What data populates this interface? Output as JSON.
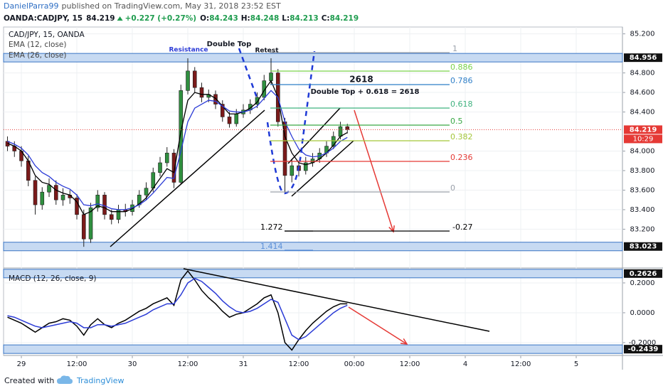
{
  "header": {
    "publisher": "DanielParra99",
    "published": "published on TradingView.com, May 31, 2018 23:52 EST",
    "symbol": "OANDA:CADJPY, 15",
    "last": "84.219",
    "change": "+0.227 (+0.27%)",
    "ohlc": [
      {
        "label": "O:",
        "value": "84.243"
      },
      {
        "label": "H:",
        "value": "84.248"
      },
      {
        "label": "L:",
        "value": "84.213"
      },
      {
        "label": "C:",
        "value": "84.219"
      }
    ]
  },
  "footer": {
    "created": "Created with",
    "brand": "TradingView"
  },
  "chart_data": [
    {
      "type": "candlestick",
      "title": "CAD/JPY, 15, OANDA",
      "x": [
        -3,
        -1.5,
        0,
        1.5,
        3,
        4.5,
        6,
        7.5,
        9,
        10.5,
        12,
        13.5,
        15,
        16.5,
        18,
        19.5,
        21,
        22.5,
        24,
        25.5,
        27,
        28.5,
        30,
        31.5,
        33,
        34.5,
        36,
        37.5,
        39,
        40.5,
        42,
        43.5,
        45,
        46.5,
        48,
        49.5,
        51,
        52.5,
        54,
        55.5,
        57,
        58.5,
        60,
        61.5,
        63,
        64.5,
        66,
        67.5,
        69,
        70.5
      ],
      "open": [
        84.1,
        84.05,
        84.0,
        83.9,
        83.7,
        83.45,
        83.58,
        83.65,
        83.5,
        83.55,
        83.52,
        83.35,
        83.1,
        83.42,
        83.55,
        83.35,
        83.3,
        83.4,
        83.38,
        83.45,
        83.55,
        83.62,
        83.78,
        83.88,
        83.98,
        83.68,
        84.62,
        84.82,
        84.65,
        84.55,
        84.58,
        84.48,
        84.35,
        84.28,
        84.38,
        84.42,
        84.48,
        84.55,
        84.72,
        84.8,
        84.3,
        83.75,
        83.85,
        83.8,
        83.88,
        83.92,
        83.98,
        84.05,
        84.15,
        84.25
      ],
      "high": [
        84.15,
        84.1,
        84.05,
        83.95,
        83.74,
        83.63,
        83.72,
        83.7,
        83.62,
        83.6,
        83.56,
        83.4,
        83.47,
        83.6,
        83.58,
        83.4,
        83.45,
        83.46,
        83.5,
        83.6,
        83.68,
        83.83,
        83.94,
        84.04,
        84.02,
        84.68,
        84.95,
        84.86,
        84.7,
        84.63,
        84.62,
        84.52,
        84.4,
        84.43,
        84.48,
        84.53,
        84.6,
        84.78,
        84.95,
        84.84,
        84.34,
        83.92,
        83.9,
        83.94,
        83.98,
        84.03,
        84.1,
        84.2,
        84.3,
        84.28
      ],
      "low": [
        84.0,
        83.94,
        83.84,
        83.64,
        83.35,
        83.4,
        83.53,
        83.45,
        83.44,
        83.46,
        83.3,
        83.02,
        83.06,
        83.38,
        83.3,
        83.25,
        83.26,
        83.33,
        83.34,
        83.42,
        83.5,
        83.58,
        83.74,
        83.84,
        83.62,
        83.66,
        84.58,
        84.6,
        84.5,
        84.5,
        84.43,
        84.3,
        84.24,
        84.25,
        84.34,
        84.38,
        84.44,
        84.52,
        84.68,
        84.25,
        83.57,
        83.68,
        83.74,
        83.76,
        83.84,
        83.88,
        83.94,
        84.02,
        84.12,
        84.18
      ],
      "close": [
        84.05,
        84.0,
        83.9,
        83.7,
        83.45,
        83.58,
        83.65,
        83.5,
        83.55,
        83.52,
        83.35,
        83.1,
        83.42,
        83.55,
        83.35,
        83.3,
        83.4,
        83.38,
        83.45,
        83.55,
        83.62,
        83.78,
        83.88,
        83.98,
        83.68,
        84.62,
        84.82,
        84.65,
        84.55,
        84.58,
        84.48,
        84.35,
        84.28,
        84.38,
        84.42,
        84.48,
        84.55,
        84.72,
        84.8,
        84.3,
        83.75,
        83.85,
        83.8,
        83.88,
        83.92,
        83.98,
        84.05,
        84.15,
        84.25,
        84.22
      ],
      "up_color": "#2f8f3f",
      "down_color": "#7a1a1a",
      "series": [
        {
          "name": "EMA (12, close)",
          "color": "#000000",
          "values": [
            84.08,
            84.05,
            84.0,
            83.9,
            83.75,
            83.68,
            83.66,
            83.6,
            83.57,
            83.55,
            83.48,
            83.35,
            83.38,
            83.44,
            83.42,
            83.38,
            83.38,
            83.38,
            83.41,
            83.46,
            83.52,
            83.62,
            83.72,
            83.82,
            83.78,
            84.2,
            84.52,
            84.6,
            84.58,
            84.58,
            84.54,
            84.46,
            84.38,
            84.38,
            84.4,
            84.44,
            84.5,
            84.62,
            84.72,
            84.55,
            84.15,
            83.98,
            83.88,
            83.86,
            83.88,
            83.92,
            83.98,
            84.06,
            84.15,
            84.19
          ]
        },
        {
          "name": "EMA (26, close)",
          "color": "#2b3bd6",
          "values": [
            84.1,
            84.07,
            84.03,
            83.96,
            83.85,
            83.78,
            83.74,
            83.68,
            83.64,
            83.61,
            83.55,
            83.45,
            83.44,
            83.46,
            83.44,
            83.41,
            83.4,
            83.4,
            83.42,
            83.45,
            83.5,
            83.57,
            83.65,
            83.73,
            83.72,
            84.0,
            84.3,
            84.44,
            84.48,
            84.52,
            84.51,
            84.46,
            84.41,
            84.4,
            84.4,
            84.42,
            84.46,
            84.54,
            84.62,
            84.55,
            84.3,
            84.15,
            84.02,
            83.96,
            83.94,
            83.95,
            83.98,
            84.03,
            84.1,
            84.14
          ]
        }
      ],
      "xlim": [
        -3.85,
        130
      ],
      "xticks": [
        {
          "value": 0,
          "label": "29"
        },
        {
          "value": 12,
          "label": "12:00"
        },
        {
          "value": 24,
          "label": "30"
        },
        {
          "value": 36,
          "label": "12:00"
        },
        {
          "value": 48,
          "label": "31"
        },
        {
          "value": 60,
          "label": "12:00"
        },
        {
          "value": 72,
          "label": "00:00"
        },
        {
          "value": 84,
          "label": "12:00"
        },
        {
          "value": 96,
          "label": "4"
        },
        {
          "value": 108,
          "label": "12:00"
        },
        {
          "value": 120,
          "label": "5"
        }
      ],
      "ylim": [
        82.81,
        85.27
      ],
      "yticks": [
        {
          "value": 85.2,
          "label": "85.200"
        },
        {
          "value": 84.8,
          "label": "84.800"
        },
        {
          "value": 84.6,
          "label": "84.600"
        },
        {
          "value": 84.4,
          "label": "84.400"
        },
        {
          "value": 84,
          "label": "84.000"
        },
        {
          "value": 83.8,
          "label": "83.800"
        },
        {
          "value": 83.6,
          "label": "83.600"
        },
        {
          "value": 83.4,
          "label": "83.400"
        },
        {
          "value": 83.2,
          "label": "83.200"
        }
      ],
      "grid": true,
      "levels": [
        84.956,
        83.023
      ],
      "last_price": 84.219,
      "countdown": "10:29",
      "fib_levels": [
        1,
        0.886,
        0.786,
        0.618,
        0.5,
        0.382,
        0.236,
        0,
        -0.27,
        1.272,
        1.414
      ],
      "annotations": [
        "Resistance",
        "Double Top",
        "Retest",
        "2618",
        "Double Top + 0.618 = 2618"
      ]
    },
    {
      "type": "line",
      "title": "MACD (12, 26, close, 9)",
      "x": [
        -3,
        -1.5,
        0,
        1.5,
        3,
        4.5,
        6,
        7.5,
        9,
        10.5,
        12,
        13.5,
        15,
        16.5,
        18,
        19.5,
        21,
        22.5,
        24,
        25.5,
        27,
        28.5,
        30,
        31.5,
        33,
        34.5,
        36,
        37.5,
        39,
        40.5,
        42,
        43.5,
        45,
        46.5,
        48,
        49.5,
        51,
        52.5,
        54,
        55.5,
        57,
        58.5,
        60,
        61.5,
        63,
        64.5,
        66,
        67.5,
        69,
        70.5
      ],
      "series": [
        {
          "color": "#000000",
          "values": [
            -0.03,
            -0.05,
            -0.07,
            -0.1,
            -0.13,
            -0.1,
            -0.07,
            -0.06,
            -0.04,
            -0.05,
            -0.09,
            -0.15,
            -0.08,
            -0.04,
            -0.08,
            -0.1,
            -0.07,
            -0.05,
            -0.02,
            0.01,
            0.03,
            0.06,
            0.08,
            0.1,
            0.05,
            0.22,
            0.28,
            0.22,
            0.15,
            0.1,
            0.06,
            0.01,
            -0.03,
            -0.01,
            0.0,
            0.03,
            0.06,
            0.1,
            0.12,
            0.0,
            -0.2,
            -0.25,
            -0.18,
            -0.12,
            -0.07,
            -0.03,
            0.01,
            0.04,
            0.06,
            0.06
          ]
        },
        {
          "color": "#2b3bd6",
          "values": [
            -0.02,
            -0.03,
            -0.05,
            -0.07,
            -0.09,
            -0.1,
            -0.09,
            -0.08,
            -0.07,
            -0.06,
            -0.07,
            -0.1,
            -0.1,
            -0.08,
            -0.08,
            -0.09,
            -0.08,
            -0.07,
            -0.05,
            -0.03,
            -0.01,
            0.02,
            0.04,
            0.06,
            0.06,
            0.12,
            0.2,
            0.23,
            0.21,
            0.17,
            0.13,
            0.08,
            0.04,
            0.01,
            0.0,
            0.01,
            0.03,
            0.06,
            0.09,
            0.07,
            -0.04,
            -0.15,
            -0.18,
            -0.16,
            -0.12,
            -0.08,
            -0.04,
            0.0,
            0.03,
            0.05
          ]
        }
      ],
      "xlim": [
        -3.85,
        130
      ],
      "ylim": [
        -0.286,
        0.295
      ],
      "yticks": [
        {
          "value": 0.2,
          "label": "0.2000"
        },
        {
          "value": 0,
          "label": "0.0000"
        },
        {
          "value": -0.2,
          "label": "-0.2000"
        }
      ],
      "grid": true,
      "levels": [
        0.2626,
        -0.2439
      ]
    }
  ]
}
